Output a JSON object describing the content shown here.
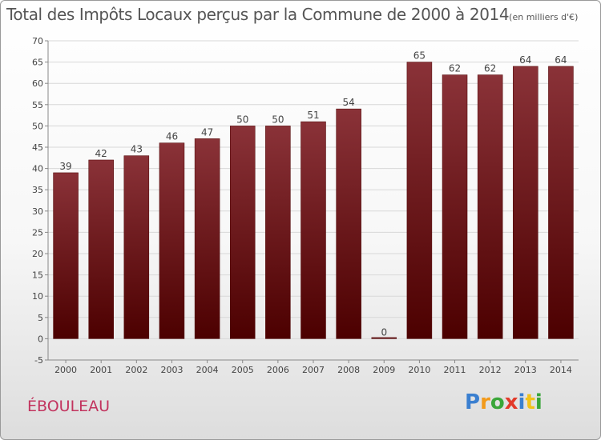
{
  "header": {
    "title": "Total des Impôts Locaux perçus par la Commune de 2000 à 2014",
    "unit": "(en milliers d'€)"
  },
  "commune": "ÉBOULEAU",
  "logo": {
    "text": "Proxiti",
    "letters": [
      {
        "ch": "P",
        "color": "#3a7fd0"
      },
      {
        "ch": "r",
        "color": "#f29a1a"
      },
      {
        "ch": "o",
        "color": "#3aa63a"
      },
      {
        "ch": "x",
        "color": "#e23a2a"
      },
      {
        "ch": "i",
        "color": "#3a7fd0"
      },
      {
        "ch": "t",
        "color": "#f2c21a"
      },
      {
        "ch": "i",
        "color": "#3aa63a"
      }
    ]
  },
  "colors": {
    "bar_top": "#8a3238",
    "bar_bottom": "#4c0000",
    "axis": "#888888",
    "grid": "#d8d8d8"
  },
  "chart_data": {
    "type": "bar",
    "title": "Total des Impôts Locaux perçus par la Commune de 2000 à 2014",
    "subtitle": "(en milliers d'€)",
    "categories": [
      "2000",
      "2001",
      "2002",
      "2003",
      "2004",
      "2005",
      "2006",
      "2007",
      "2008",
      "2009",
      "2010",
      "2011",
      "2012",
      "2013",
      "2014"
    ],
    "values": [
      39,
      42,
      43,
      46,
      47,
      50,
      50,
      51,
      54,
      0,
      65,
      62,
      62,
      64,
      64
    ],
    "ylim": [
      -5,
      70
    ],
    "yticks": [
      -5,
      0,
      5,
      10,
      15,
      20,
      25,
      30,
      35,
      40,
      45,
      50,
      55,
      60,
      65,
      70
    ],
    "grid": true,
    "data_labels": true,
    "xlabel": "",
    "ylabel": ""
  }
}
